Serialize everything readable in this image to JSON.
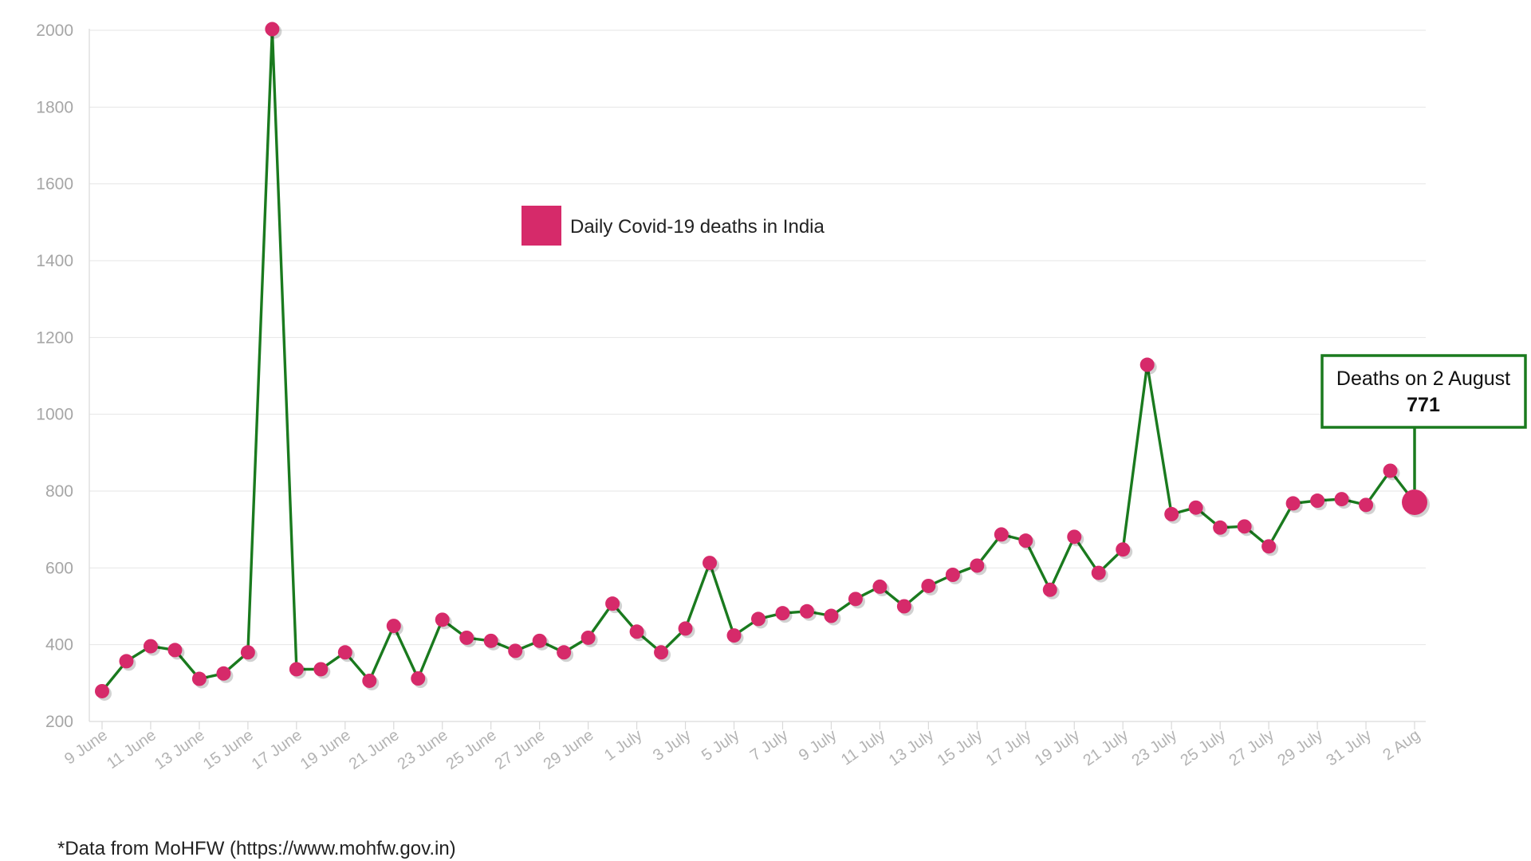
{
  "chart_data": {
    "type": "line",
    "title": "",
    "xlabel": "",
    "ylabel": "",
    "ylim": [
      200,
      2000
    ],
    "yticks": [
      200,
      400,
      600,
      800,
      1000,
      1200,
      1400,
      1600,
      1800,
      2000
    ],
    "grid": true,
    "legend_position": "top-center",
    "x": [
      "9 June",
      "10 June",
      "11 June",
      "12 June",
      "13 June",
      "14 June",
      "15 June",
      "16 June",
      "17 June",
      "18 June",
      "19 June",
      "20 June",
      "21 June",
      "22 June",
      "23 June",
      "24 June",
      "25 June",
      "26 June",
      "27 June",
      "28 June",
      "29 June",
      "30 June",
      "1 July",
      "2 July",
      "3 July",
      "4 July",
      "5 July",
      "6 July",
      "7 July",
      "8 July",
      "9 July",
      "10 July",
      "11 July",
      "12 July",
      "13 July",
      "14 July",
      "15 July",
      "16 July",
      "17 July",
      "18 July",
      "19 July",
      "20 July",
      "21 July",
      "22 July",
      "23 July",
      "24 July",
      "25 July",
      "26 July",
      "27 July",
      "28 July",
      "29 July",
      "30 July",
      "31 July",
      "1 Aug",
      "2 Aug"
    ],
    "x_tick_labels": [
      "9 June",
      "11 June",
      "13 June",
      "15 June",
      "17 June",
      "19 June",
      "21 June",
      "23 June",
      "25 June",
      "27 June",
      "29 June",
      "1 July",
      "3 July",
      "5 July",
      "7 July",
      "9 July",
      "11 July",
      "13 July",
      "15 July",
      "17 July",
      "19 July",
      "21 July",
      "23 July",
      "25 July",
      "27 July",
      "29 July",
      "31 July",
      "2 Aug"
    ],
    "series": [
      {
        "name": "Daily Covid-19 deaths in India",
        "line_color": "#1a7a1e",
        "marker_color": "#d62a6a",
        "values": [
          279,
          357,
          396,
          386,
          311,
          325,
          380,
          2003,
          336,
          336,
          380,
          306,
          449,
          312,
          465,
          418,
          410,
          384,
          410,
          380,
          418,
          507,
          434,
          380,
          442,
          613,
          424,
          467,
          482,
          487,
          475,
          519,
          551,
          500,
          553,
          582,
          606,
          687,
          671,
          543,
          681,
          587,
          648,
          1129,
          740,
          757,
          705,
          708,
          656,
          768,
          775,
          779,
          764,
          853,
          771
        ]
      }
    ],
    "annotation": {
      "label": "Deaths on 2 August",
      "value": "771",
      "target_index": 54
    }
  },
  "footnote": "*Data from MoHFW (https://www.mohfw.gov.in)"
}
